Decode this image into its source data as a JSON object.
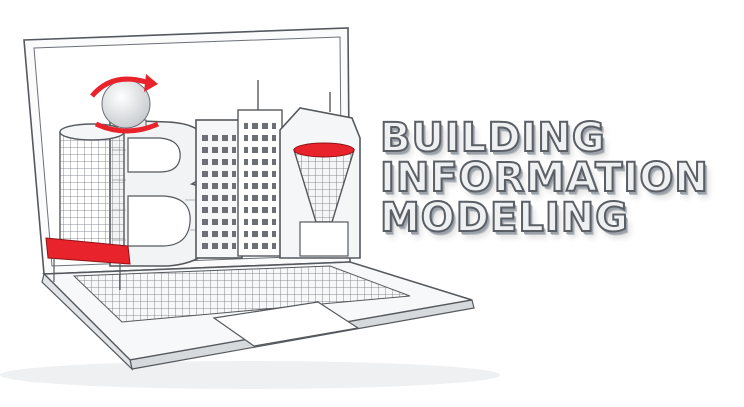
{
  "headline": {
    "line1": "BUILDING",
    "line2": "INFORMATION",
    "line3": "MODELING"
  },
  "colors": {
    "accent_red": "#e8232b",
    "line_gray": "#55595e",
    "surface": "#f3f4f5",
    "letter_face": "#eef0f2"
  },
  "icons": [
    "laptop-illustration",
    "letter-b-building",
    "letter-i-tower",
    "letter-m-building",
    "sphere-with-arrow"
  ]
}
